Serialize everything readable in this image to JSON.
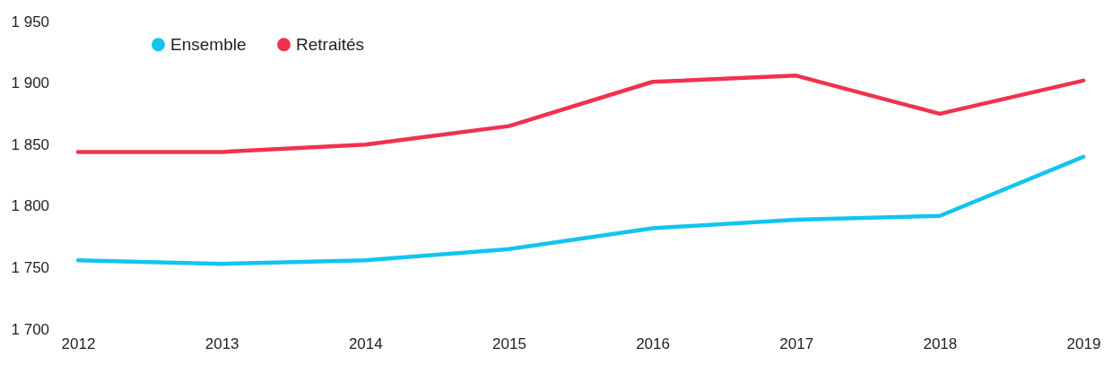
{
  "chart_data": {
    "type": "line",
    "categories": [
      "2012",
      "2013",
      "2014",
      "2015",
      "2016",
      "2017",
      "2018",
      "2019"
    ],
    "series": [
      {
        "name": "Ensemble",
        "color": "#13c4f0",
        "values": [
          1756,
          1753,
          1756,
          1765,
          1782,
          1789,
          1792,
          1840
        ]
      },
      {
        "name": "Retraités",
        "color": "#f0324f",
        "values": [
          1844,
          1844,
          1850,
          1865,
          1901,
          1906,
          1875,
          1902
        ]
      }
    ],
    "ylim": [
      1700,
      1950
    ],
    "yticks": [
      {
        "value": 1700,
        "label": "1 700"
      },
      {
        "value": 1750,
        "label": "1 750"
      },
      {
        "value": 1800,
        "label": "1 800"
      },
      {
        "value": 1850,
        "label": "1 850"
      },
      {
        "value": 1900,
        "label": "1 900"
      },
      {
        "value": 1950,
        "label": "1 950"
      }
    ],
    "grid": false,
    "legend": "top left",
    "line_style": "solid"
  }
}
